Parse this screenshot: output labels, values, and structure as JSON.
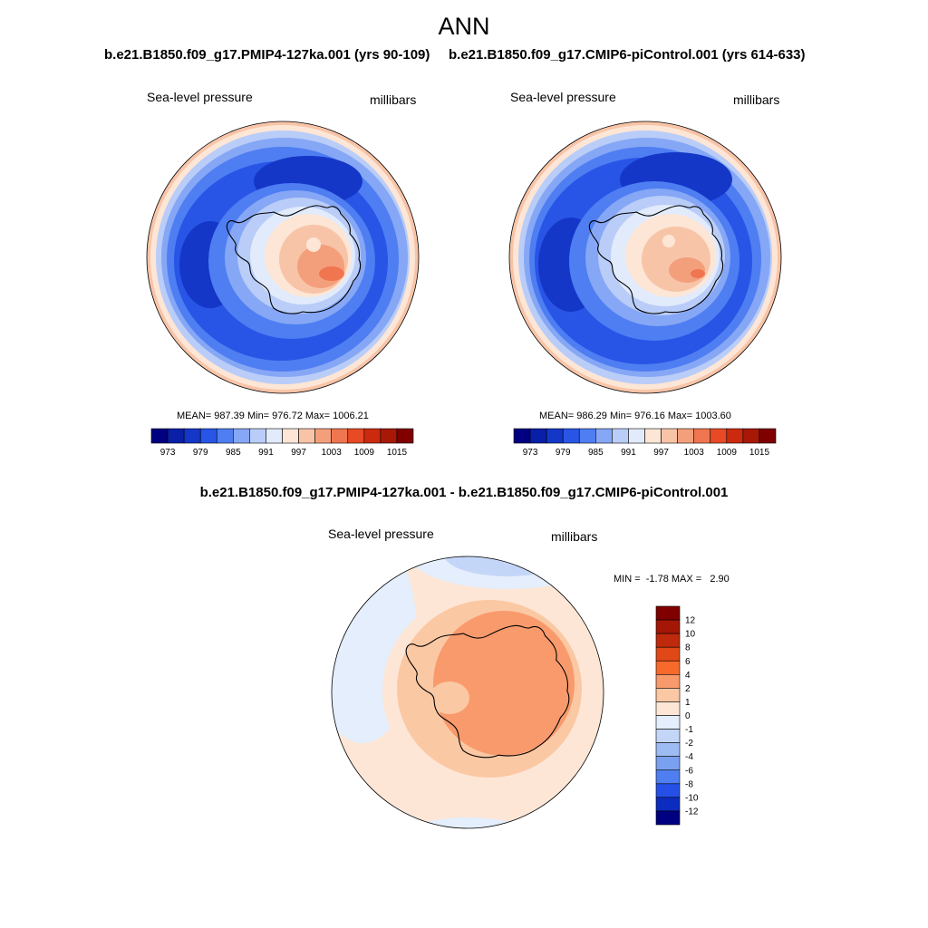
{
  "figure": {
    "main_title": "ANN",
    "diff_title": "b.e21.B1850.f09_g17.PMIP4-127ka.001 - b.e21.B1850.f09_g17.CMIP6-piControl.001"
  },
  "chart_data": [
    {
      "type": "heatmap",
      "projection": "south-polar-stereographic",
      "title": "b.e21.B1850.f09_g17.PMIP4-127ka.001 (yrs 90-109)",
      "variable_label": "Sea-level pressure",
      "units_label": "millibars",
      "stats": "MEAN= 987.39  Min= 976.72  Max= 1006.21",
      "mean": 987.39,
      "min": 976.72,
      "max": 1006.21,
      "colorbar": {
        "orientation": "horizontal",
        "tick_labels": [
          "973",
          "979",
          "985",
          "991",
          "997",
          "1003",
          "1009",
          "1015"
        ],
        "colors": [
          "#000080",
          "#0a1fa8",
          "#1437c8",
          "#2855e6",
          "#4e7ef2",
          "#86a7f5",
          "#b9cdf8",
          "#e2ebfb",
          "#fde6d6",
          "#f8c4a8",
          "#f49f7c",
          "#ef7650",
          "#e84a26",
          "#cc2a0e",
          "#a81806",
          "#800000"
        ]
      }
    },
    {
      "type": "heatmap",
      "projection": "south-polar-stereographic",
      "title": "b.e21.B1850.f09_g17.CMIP6-piControl.001 (yrs 614-633)",
      "variable_label": "Sea-level pressure",
      "units_label": "millibars",
      "stats": "MEAN= 986.29  Min= 976.16  Max= 1003.60",
      "mean": 986.29,
      "min": 976.16,
      "max": 1003.6,
      "colorbar": {
        "orientation": "horizontal",
        "tick_labels": [
          "973",
          "979",
          "985",
          "991",
          "997",
          "1003",
          "1009",
          "1015"
        ],
        "colors": [
          "#000080",
          "#0a1fa8",
          "#1437c8",
          "#2855e6",
          "#4e7ef2",
          "#86a7f5",
          "#b9cdf8",
          "#e2ebfb",
          "#fde6d6",
          "#f8c4a8",
          "#f49f7c",
          "#ef7650",
          "#e84a26",
          "#cc2a0e",
          "#a81806",
          "#800000"
        ]
      }
    },
    {
      "type": "heatmap",
      "projection": "south-polar-stereographic",
      "variable_label": "Sea-level pressure",
      "units_label": "millibars",
      "stats": "MIN =  -1.78 MAX =   2.90",
      "min": -1.78,
      "max": 2.9,
      "colorbar": {
        "orientation": "vertical",
        "tick_labels": [
          "12",
          "10",
          "8",
          "6",
          "4",
          "2",
          "1",
          "0",
          "-1",
          "-2",
          "-4",
          "-6",
          "-8",
          "-10",
          "-12"
        ],
        "colors": [
          "#800000",
          "#a41606",
          "#c02a0c",
          "#e04818",
          "#f86a2c",
          "#f99a6c",
          "#fbc8a4",
          "#fde6d6",
          "#e4eefc",
          "#c4d6f8",
          "#9ebcf4",
          "#7aa0f0",
          "#4e7ef0",
          "#2550e8",
          "#0c2cc0",
          "#000080"
        ]
      }
    }
  ]
}
